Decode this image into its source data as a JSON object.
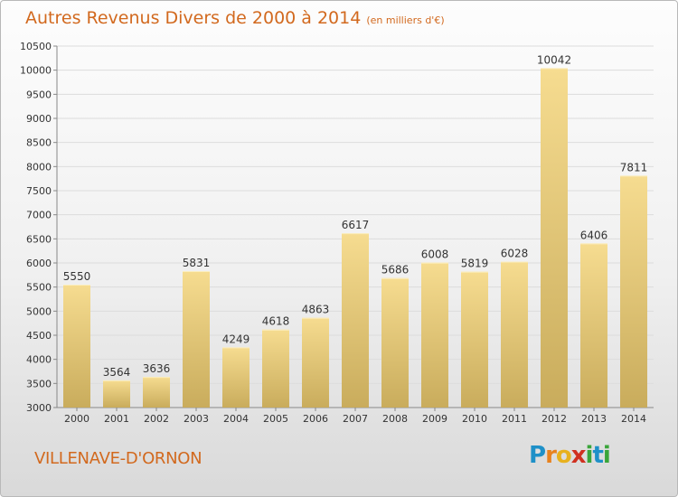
{
  "header": {
    "title": "Autres Revenus Divers de 2000 à 2014",
    "unit": "(en milliers d'€)"
  },
  "footer": {
    "commune": "VILLENAVE-D'ORNON",
    "logo_text": "Proxiti",
    "logo_letters": [
      {
        "char": "P",
        "color": "#1e90c8"
      },
      {
        "char": "r",
        "color": "#e8821e"
      },
      {
        "char": "o",
        "color": "#e8b11e"
      },
      {
        "char": "x",
        "color": "#d03020"
      },
      {
        "char": "i",
        "color": "#3aa53a"
      },
      {
        "char": "t",
        "color": "#1e90c8"
      },
      {
        "char": "i",
        "color": "#3aa53a"
      }
    ]
  },
  "colors": {
    "title": "#d2691e",
    "bar_light": "#f6dc90",
    "bar_dark": "#c9ac5c"
  },
  "chart_data": {
    "type": "bar",
    "categories": [
      "2000",
      "2001",
      "2002",
      "2003",
      "2004",
      "2005",
      "2006",
      "2007",
      "2008",
      "2009",
      "2010",
      "2011",
      "2012",
      "2013",
      "2014"
    ],
    "values": [
      5550,
      3564,
      3636,
      5831,
      4249,
      4618,
      4863,
      6617,
      5686,
      6008,
      5819,
      6028,
      10042,
      6406,
      7811
    ],
    "ylim": [
      3000,
      10500
    ],
    "yticks": [
      3000,
      3500,
      4000,
      4500,
      5000,
      5500,
      6000,
      6500,
      7000,
      7500,
      8000,
      8500,
      9000,
      9500,
      10000,
      10500
    ],
    "grid": true,
    "legend": "none"
  }
}
